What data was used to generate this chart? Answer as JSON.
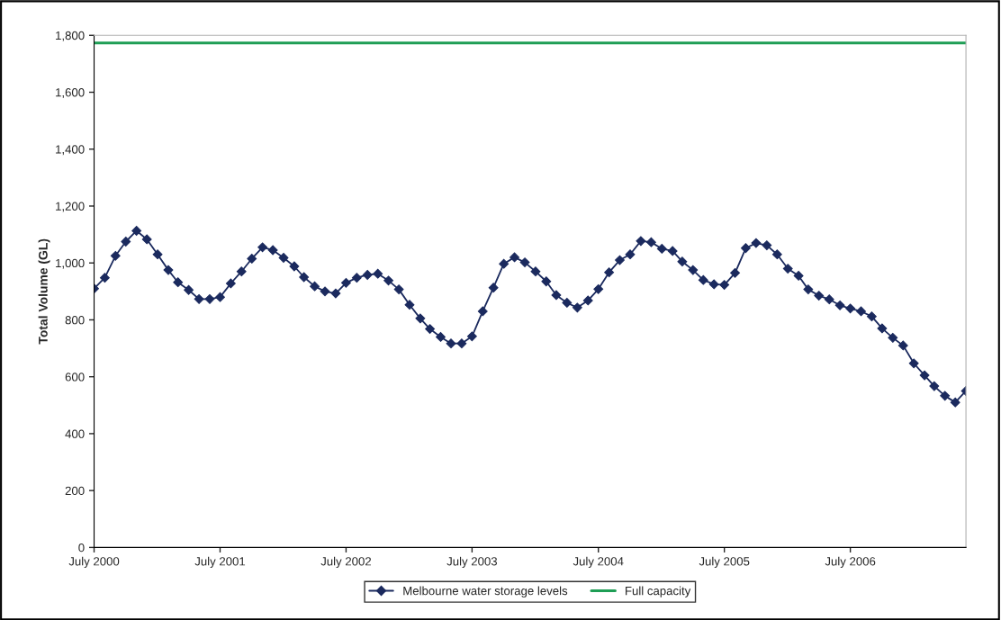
{
  "chart_data": {
    "type": "line",
    "ylabel": "Total Volume (GL)",
    "x": [
      "2000-07",
      "2000-08",
      "2000-09",
      "2000-10",
      "2000-11",
      "2000-12",
      "2001-01",
      "2001-02",
      "2001-03",
      "2001-04",
      "2001-05",
      "2001-06",
      "2001-07",
      "2001-08",
      "2001-09",
      "2001-10",
      "2001-11",
      "2001-12",
      "2002-01",
      "2002-02",
      "2002-03",
      "2002-04",
      "2002-05",
      "2002-06",
      "2002-07",
      "2002-08",
      "2002-09",
      "2002-10",
      "2002-11",
      "2002-12",
      "2003-01",
      "2003-02",
      "2003-03",
      "2003-04",
      "2003-05",
      "2003-06",
      "2003-07",
      "2003-08",
      "2003-09",
      "2003-10",
      "2003-11",
      "2003-12",
      "2004-01",
      "2004-02",
      "2004-03",
      "2004-04",
      "2004-05",
      "2004-06",
      "2004-07",
      "2004-08",
      "2004-09",
      "2004-10",
      "2004-11",
      "2004-12",
      "2005-01",
      "2005-02",
      "2005-03",
      "2005-04",
      "2005-05",
      "2005-06",
      "2005-07",
      "2005-08",
      "2005-09",
      "2005-10",
      "2005-11",
      "2005-12",
      "2006-01",
      "2006-02",
      "2006-03",
      "2006-04",
      "2006-05",
      "2006-06",
      "2006-07",
      "2006-08",
      "2006-09",
      "2006-10",
      "2006-11",
      "2006-12",
      "2007-01",
      "2007-02",
      "2007-03",
      "2007-04",
      "2007-05",
      "2007-06"
    ],
    "series": [
      {
        "name": "Melbourne water storage levels",
        "color": "#1b2a5e",
        "values": [
          910,
          948,
          1025,
          1075,
          1113,
          1083,
          1030,
          975,
          932,
          905,
          873,
          873,
          880,
          928,
          970,
          1015,
          1055,
          1045,
          1018,
          988,
          950,
          918,
          900,
          893,
          930,
          948,
          958,
          962,
          938,
          907,
          853,
          805,
          768,
          740,
          717,
          717,
          742,
          830,
          913,
          997,
          1020,
          1002,
          970,
          935,
          887,
          860,
          843,
          868,
          908,
          967,
          1010,
          1030,
          1077,
          1073,
          1050,
          1042,
          1005,
          975,
          940,
          925,
          923,
          965,
          1052,
          1070,
          1062,
          1030,
          980,
          955,
          907,
          885,
          872,
          851,
          840,
          830,
          812,
          770,
          737,
          710,
          647,
          605,
          567,
          533,
          510,
          550
        ]
      }
    ],
    "ref_lines": [
      {
        "axis": "y",
        "value": 1773,
        "label": "Full capacity",
        "color": "#1e9e55"
      }
    ],
    "xlim": [
      "2000-07",
      "2007-06"
    ],
    "xticks": [
      {
        "value": "2000-07",
        "label": "July 2000"
      },
      {
        "value": "2001-07",
        "label": "July 2001"
      },
      {
        "value": "2002-07",
        "label": "July 2002"
      },
      {
        "value": "2003-07",
        "label": "July 2003"
      },
      {
        "value": "2004-07",
        "label": "July 2004"
      },
      {
        "value": "2005-07",
        "label": "July 2005"
      },
      {
        "value": "2006-07",
        "label": "July 2006"
      }
    ],
    "ylim": [
      0,
      1800
    ],
    "yticks": [
      {
        "value": 0,
        "label": "0"
      },
      {
        "value": 200,
        "label": "200"
      },
      {
        "value": 400,
        "label": "400"
      },
      {
        "value": 600,
        "label": "600"
      },
      {
        "value": 800,
        "label": "800"
      },
      {
        "value": 1000,
        "label": "1,000"
      },
      {
        "value": 1200,
        "label": "1,200"
      },
      {
        "value": 1400,
        "label": "1,400"
      },
      {
        "value": 1600,
        "label": "1,600"
      },
      {
        "value": 1800,
        "label": "1,800"
      }
    ],
    "marker": "diamond",
    "line_style": "solid",
    "grid": false,
    "legend": "bottom"
  }
}
